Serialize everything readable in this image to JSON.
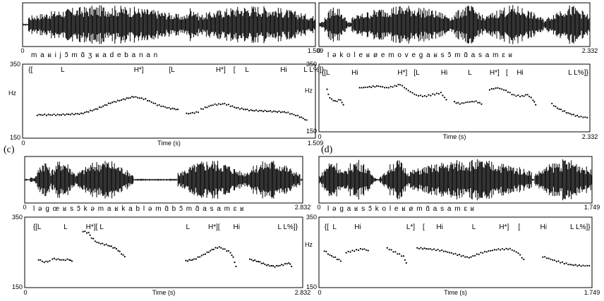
{
  "chart_data": [
    {
      "type": "line",
      "label": "",
      "duration": "1.509",
      "phonemes": "m a ʁ i j ɔ̃ m ɑ̃ ʒ ʁ a d e b a n a n",
      "tobi": [
        "{[",
        "L",
        "H*]",
        "[L",
        "H*]",
        "[",
        "L",
        "Hi",
        "L L%]}"
      ],
      "tobi_pos": [
        0.02,
        0.13,
        0.38,
        0.5,
        0.66,
        0.72,
        0.76,
        0.88,
        0.96
      ],
      "ylim": [
        150,
        350
      ],
      "ymax_label": "350",
      "ymin_label": "150",
      "xmin_label": "0",
      "xmax_label": "1.509",
      "ylabel": "Hz",
      "xlabel": "Time (s)",
      "segments": [
        [
          [
            0.05,
            213
          ],
          [
            0.12,
            213
          ],
          [
            0.2,
            216
          ],
          [
            0.25,
            228
          ],
          [
            0.3,
            245
          ],
          [
            0.35,
            256
          ],
          [
            0.38,
            262
          ],
          [
            0.42,
            255
          ],
          [
            0.46,
            240
          ],
          [
            0.5,
            231
          ],
          [
            0.53,
            228
          ]
        ],
        [
          [
            0.56,
            216
          ],
          [
            0.6,
            220
          ]
        ],
        [
          [
            0.61,
            228
          ],
          [
            0.65,
            240
          ],
          [
            0.69,
            243
          ],
          [
            0.73,
            232
          ],
          [
            0.78,
            225
          ],
          [
            0.84,
            223
          ],
          [
            0.9,
            220
          ],
          [
            0.94,
            210
          ],
          [
            0.97,
            199
          ]
        ]
      ]
    },
    {
      "type": "line",
      "label": "(c)",
      "duration": "2.832",
      "phonemes": "l ə g œ ʁ s ɔ̃ k ə m a ʁ k a b l ə m ɑ̃ b ɔ̃ m ɑ̃ a s a m ɛ ʁ",
      "tobi": [
        "{[L",
        "L",
        "H*][",
        "L",
        "L",
        "H*][",
        "Hi",
        "L L%]}"
      ],
      "tobi_pos": [
        0.03,
        0.14,
        0.22,
        0.27,
        0.58,
        0.66,
        0.75,
        0.91
      ],
      "ylim": [
        150,
        350
      ],
      "ymax_label": "350",
      "ymin_label": "150",
      "xmin_label": "0",
      "xmax_label": "2.832",
      "ylabel": "",
      "xlabel": "Time (s)",
      "segments": [
        [
          [
            0.05,
            230
          ],
          [
            0.07,
            222
          ],
          [
            0.09,
            226
          ]
        ],
        [
          [
            0.1,
            232
          ],
          [
            0.14,
            228
          ],
          [
            0.16,
            230
          ],
          [
            0.17,
            225
          ]
        ],
        [
          [
            0.21,
            310
          ],
          [
            0.23,
            305
          ],
          [
            0.24,
            292
          ],
          [
            0.26,
            278
          ],
          [
            0.3,
            270
          ],
          [
            0.33,
            260
          ],
          [
            0.36,
            238
          ]
        ],
        [
          [
            0.58,
            226
          ],
          [
            0.61,
            230
          ],
          [
            0.65,
            246
          ],
          [
            0.68,
            260
          ],
          [
            0.7,
            265
          ],
          [
            0.72,
            258
          ],
          [
            0.74,
            250
          ],
          [
            0.75,
            235
          ],
          [
            0.76,
            210
          ]
        ],
        [
          [
            0.81,
            230
          ],
          [
            0.84,
            224
          ],
          [
            0.87,
            214
          ],
          [
            0.9,
            210
          ],
          [
            0.93,
            215
          ],
          [
            0.95,
            220
          ],
          [
            0.96,
            210
          ]
        ]
      ]
    },
    {
      "type": "line",
      "label": "(d)",
      "duration": "2.332",
      "phonemes": "l ə k o l e ʁ ø e m o v e g a ʁ s ɔ̃ m ɑ̃ a s a m ɛ ʁ",
      "tobi": [
        "{[L",
        "Hi",
        "H*]",
        "[L",
        "Hi",
        "L",
        "H*]",
        "[",
        "Hi",
        "L L%]}"
      ],
      "tobi_pos": [
        0.01,
        0.12,
        0.29,
        0.35,
        0.45,
        0.55,
        0.63,
        0.69,
        0.73,
        0.92
      ],
      "ylim": [
        150,
        350
      ],
      "ymax_label": "350",
      "ymin_label": "150",
      "xmin_label": "0",
      "xmax_label": "2.332",
      "ylabel": "Hz",
      "xlabel": "Time (s)",
      "segments": [
        [
          [
            0.03,
            275
          ],
          [
            0.04,
            250
          ],
          [
            0.06,
            240
          ],
          [
            0.08,
            245
          ],
          [
            0.09,
            230
          ]
        ],
        [
          [
            0.15,
            280
          ],
          [
            0.18,
            282
          ],
          [
            0.22,
            285
          ],
          [
            0.25,
            280
          ],
          [
            0.28,
            285
          ],
          [
            0.3,
            290
          ],
          [
            0.33,
            272
          ],
          [
            0.36,
            258
          ],
          [
            0.39,
            255
          ],
          [
            0.42,
            260
          ],
          [
            0.45,
            265
          ],
          [
            0.47,
            245
          ]
        ],
        [
          [
            0.5,
            238
          ],
          [
            0.52,
            233
          ],
          [
            0.55,
            238
          ],
          [
            0.58,
            240
          ],
          [
            0.6,
            232
          ]
        ],
        [
          [
            0.63,
            275
          ],
          [
            0.66,
            280
          ],
          [
            0.69,
            272
          ],
          [
            0.72,
            258
          ],
          [
            0.75,
            255
          ],
          [
            0.77,
            260
          ],
          [
            0.79,
            245
          ],
          [
            0.8,
            230
          ]
        ],
        [
          [
            0.86,
            232
          ],
          [
            0.88,
            220
          ],
          [
            0.92,
            205
          ],
          [
            0.96,
            195
          ],
          [
            0.99,
            192
          ]
        ]
      ]
    },
    {
      "type": "line",
      "label": "",
      "duration": "1.749",
      "phonemes": "l ə g a ʁ s ɔ̃ k o l e ʁ ø m ɑ̃ a s a m ɛ ʁ",
      "tobi": [
        "{[",
        "L",
        "Hi",
        "L*]",
        "[",
        "Hi",
        "L",
        "H*]",
        "[",
        "Hi",
        "L L%]}"
      ],
      "tobi_pos": [
        0.02,
        0.05,
        0.13,
        0.32,
        0.38,
        0.43,
        0.56,
        0.66,
        0.73,
        0.81,
        0.92
      ],
      "ylim": [
        150,
        350
      ],
      "ymax_label": "350",
      "ymin_label": "150",
      "xmin_label": "0",
      "xmax_label": "1.749",
      "ylabel": "Hz",
      "xlabel": "Time (s)",
      "segments": [
        [
          [
            0.02,
            255
          ],
          [
            0.04,
            242
          ],
          [
            0.06,
            235
          ],
          [
            0.08,
            225
          ]
        ],
        [
          [
            0.1,
            250
          ],
          [
            0.13,
            255
          ],
          [
            0.16,
            260
          ],
          [
            0.18,
            255
          ]
        ],
        [
          [
            0.25,
            262
          ],
          [
            0.28,
            250
          ],
          [
            0.31,
            238
          ],
          [
            0.32,
            220
          ]
        ],
        [
          [
            0.36,
            262
          ],
          [
            0.4,
            260
          ],
          [
            0.45,
            255
          ],
          [
            0.5,
            245
          ],
          [
            0.55,
            235
          ],
          [
            0.6,
            250
          ],
          [
            0.65,
            258
          ],
          [
            0.7,
            260
          ],
          [
            0.73,
            248
          ],
          [
            0.75,
            230
          ]
        ],
        [
          [
            0.82,
            238
          ],
          [
            0.87,
            225
          ],
          [
            0.92,
            215
          ],
          [
            0.96,
            212
          ],
          [
            0.99,
            212
          ]
        ]
      ]
    }
  ]
}
